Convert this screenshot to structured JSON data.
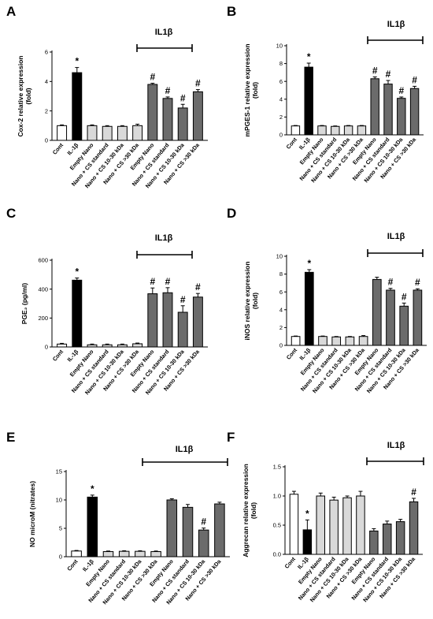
{
  "colors": {
    "cont": "#ffffff",
    "il1b": "#000000",
    "nano": "#d9d9d9",
    "treated": "#6b6b6b",
    "outline": "#000000"
  },
  "categories": [
    "Cont",
    "IL-1β",
    "Empty Nano",
    "Nano + CS standard",
    "Nano + CS 10-30 kDa",
    "Nano + CS >30 kDa",
    "Empty Nano",
    "Nano + CS standard",
    "Nano + CS 10-30 kDa",
    "Nano + CS >30 kDa"
  ],
  "bar_groups": [
    "cont",
    "il1b",
    "nano",
    "nano",
    "nano",
    "nano",
    "treated",
    "treated",
    "treated",
    "treated"
  ],
  "chart_data": [
    {
      "panel": "A",
      "type": "bar",
      "ylabel": [
        "Cox-2 relative expression",
        "(fold)"
      ],
      "bracket_label": "IL1β",
      "ylim": [
        0,
        6
      ],
      "yticks": [
        "0",
        "2",
        "4",
        "6"
      ],
      "values": [
        1.0,
        4.6,
        1.0,
        0.95,
        0.95,
        1.0,
        3.8,
        2.85,
        2.2,
        3.3
      ],
      "errors": [
        0.05,
        0.35,
        0.05,
        0.05,
        0.05,
        0.1,
        0.08,
        0.1,
        0.25,
        0.15
      ],
      "marks": [
        "",
        "*",
        "",
        "",
        "",
        "",
        "#",
        "#",
        "#",
        "#"
      ]
    },
    {
      "panel": "B",
      "type": "bar",
      "ylabel": [
        "mPGES-1 relative expression",
        "(fold)"
      ],
      "bracket_label": "IL1β",
      "ylim": [
        0,
        10
      ],
      "yticks": [
        "0",
        "2",
        "4",
        "6",
        "8",
        "10"
      ],
      "values": [
        1.0,
        7.6,
        1.0,
        0.95,
        1.0,
        1.0,
        6.3,
        5.7,
        4.1,
        5.2
      ],
      "errors": [
        0.05,
        0.45,
        0.05,
        0.05,
        0.05,
        0.05,
        0.2,
        0.4,
        0.15,
        0.25
      ],
      "marks": [
        "",
        "*",
        "",
        "",
        "",
        "",
        "#",
        "#",
        "#",
        "#"
      ]
    },
    {
      "panel": "C",
      "type": "bar",
      "ylabel": [
        "PGE₂ (pg/ml)"
      ],
      "bracket_label": "IL1β",
      "ylim": [
        0,
        600
      ],
      "yticks": [
        "0",
        "200",
        "400",
        "600"
      ],
      "values": [
        20,
        462,
        15,
        15,
        15,
        22,
        368,
        375,
        240,
        345
      ],
      "errors": [
        5,
        15,
        5,
        5,
        5,
        5,
        40,
        35,
        45,
        25
      ],
      "marks": [
        "",
        "*",
        "",
        "",
        "",
        "",
        "#",
        "#",
        "#",
        "#"
      ]
    },
    {
      "panel": "D",
      "type": "bar",
      "ylabel": [
        "iNOS relative expression",
        "(fold)"
      ],
      "bracket_label": "IL1β",
      "ylim": [
        0,
        10
      ],
      "yticks": [
        "0",
        "2",
        "4",
        "6",
        "8",
        "10"
      ],
      "values": [
        1.0,
        8.2,
        1.0,
        0.95,
        0.95,
        1.0,
        7.4,
        6.2,
        4.4,
        6.2
      ],
      "errors": [
        0.05,
        0.3,
        0.05,
        0.05,
        0.05,
        0.1,
        0.25,
        0.2,
        0.35,
        0.15
      ],
      "marks": [
        "",
        "*",
        "",
        "",
        "",
        "",
        "",
        "#",
        "#",
        "#"
      ]
    },
    {
      "panel": "E",
      "type": "bar",
      "ylabel": [
        "NO microM (nitrates)"
      ],
      "bracket_label": "IL1β",
      "ylim": [
        0,
        15
      ],
      "yticks": [
        "0",
        "5",
        "10",
        "15"
      ],
      "values": [
        1.0,
        10.5,
        0.9,
        0.95,
        0.95,
        0.9,
        10.0,
        8.7,
        4.7,
        9.3
      ],
      "errors": [
        0.1,
        0.35,
        0.1,
        0.1,
        0.1,
        0.1,
        0.2,
        0.5,
        0.35,
        0.3
      ],
      "marks": [
        "",
        "*",
        "",
        "",
        "",
        "",
        "",
        "",
        "#",
        ""
      ]
    },
    {
      "panel": "F",
      "type": "bar",
      "ylabel": [
        "Aggrecan relative expression",
        "(fold)"
      ],
      "bracket_label": "IL1β",
      "ylim": [
        0,
        1.5
      ],
      "yticks": [
        "0.0",
        "0.5",
        "1.0",
        "1.5"
      ],
      "values": [
        1.03,
        0.42,
        1.0,
        0.93,
        0.97,
        1.0,
        0.4,
        0.52,
        0.56,
        0.9
      ],
      "errors": [
        0.05,
        0.17,
        0.05,
        0.05,
        0.03,
        0.08,
        0.04,
        0.05,
        0.04,
        0.06
      ],
      "marks": [
        "",
        "*",
        "",
        "",
        "",
        "",
        "",
        "",
        "",
        "#"
      ]
    }
  ]
}
